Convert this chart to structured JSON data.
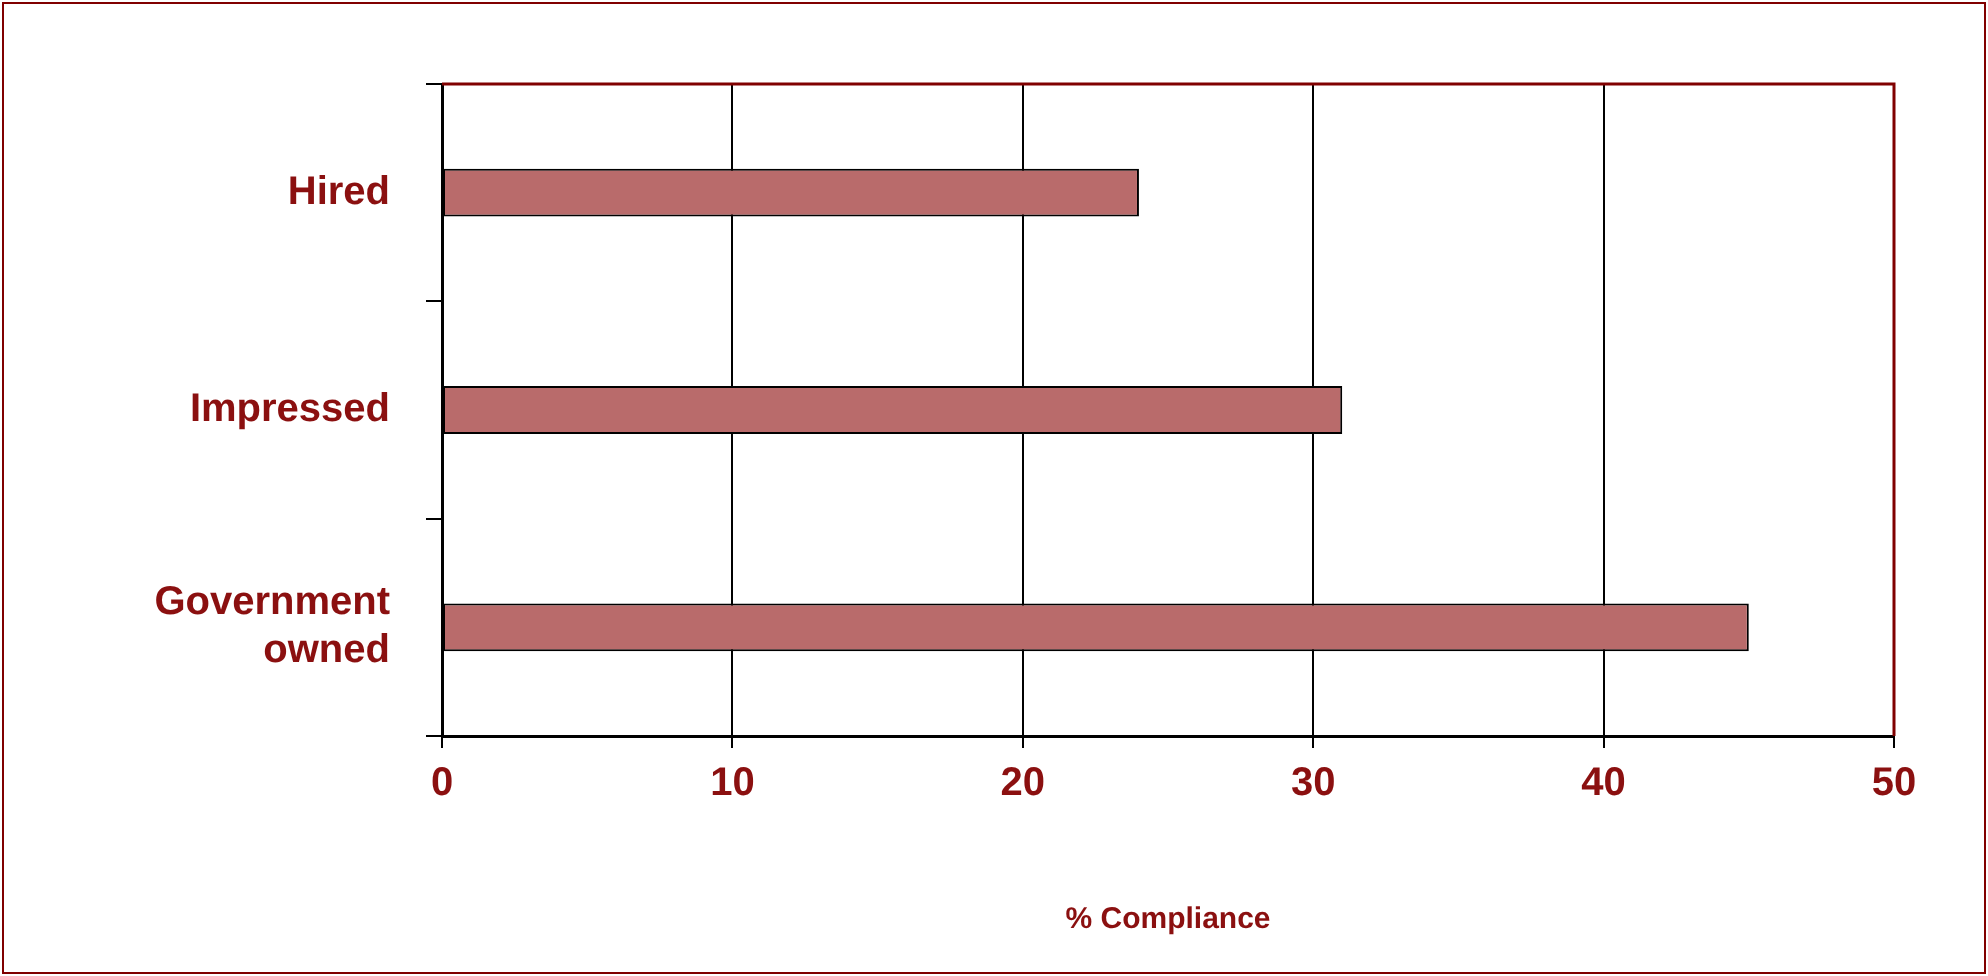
{
  "chart_data": {
    "type": "bar",
    "orientation": "horizontal",
    "xlabel": "% Compliance",
    "categories": [
      "Hired",
      "Impressed",
      "Government owned"
    ],
    "values": [
      24,
      31,
      45
    ],
    "color": "#b96b6b",
    "xlim": [
      0,
      50
    ],
    "xticks": [
      0,
      10,
      20,
      30,
      40,
      50
    ],
    "grid": "x",
    "legend": false
  }
}
